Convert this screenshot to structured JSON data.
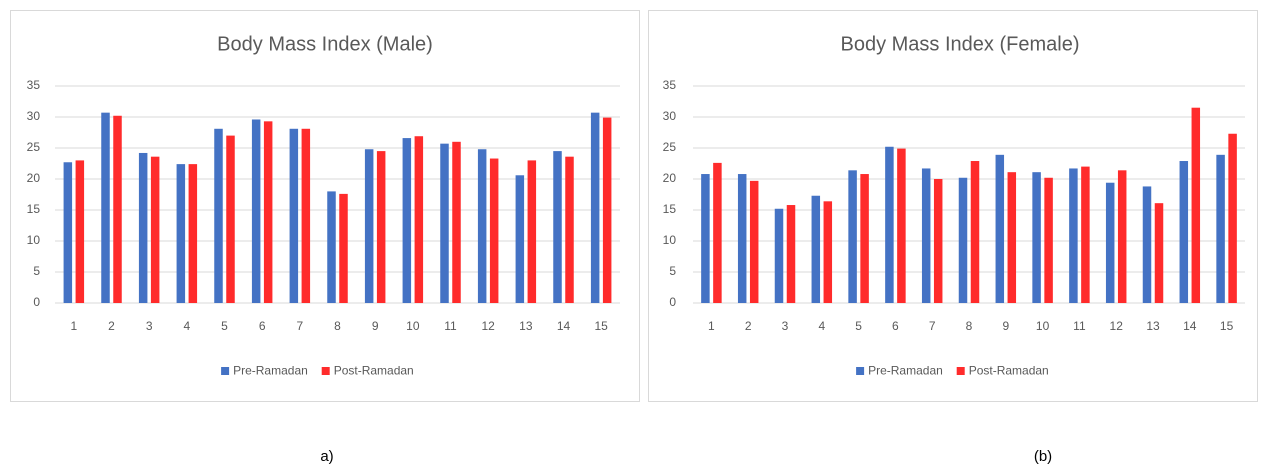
{
  "chart_data": [
    {
      "type": "bar",
      "title": "Body Mass Index (Male)",
      "caption": "a)",
      "categories": [
        "1",
        "2",
        "3",
        "4",
        "5",
        "6",
        "7",
        "8",
        "9",
        "10",
        "11",
        "12",
        "13",
        "14",
        "15"
      ],
      "series": [
        {
          "name": "Pre-Ramadan",
          "color": "#4472c4",
          "values": [
            22.7,
            30.7,
            24.2,
            22.4,
            28.1,
            29.6,
            28.1,
            18,
            24.8,
            26.6,
            25.7,
            24.8,
            20.6,
            24.5,
            30.7
          ]
        },
        {
          "name": "Post-Ramadan",
          "color": "#ff2b2b",
          "values": [
            23,
            30.2,
            23.6,
            22.4,
            27,
            29.3,
            28.1,
            17.6,
            24.5,
            26.9,
            26,
            23.3,
            23,
            23.6,
            29.9
          ]
        }
      ],
      "ylim": [
        0,
        35
      ],
      "yticks": [
        0,
        5,
        10,
        15,
        20,
        25,
        30,
        35
      ],
      "grid": true,
      "legend": "bottom"
    },
    {
      "type": "bar",
      "title": "Body Mass Index (Female)",
      "caption": "(b)",
      "categories": [
        "1",
        "2",
        "3",
        "4",
        "5",
        "6",
        "7",
        "8",
        "9",
        "10",
        "11",
        "12",
        "13",
        "14",
        "15"
      ],
      "series": [
        {
          "name": "Pre-Ramadan",
          "color": "#4472c4",
          "values": [
            20.8,
            20.8,
            15.2,
            17.3,
            21.4,
            25.2,
            21.7,
            20.2,
            23.9,
            21.1,
            21.7,
            19.4,
            18.8,
            22.9,
            23.9
          ]
        },
        {
          "name": "Post-Ramadan",
          "color": "#ff2b2b",
          "values": [
            22.6,
            19.7,
            15.8,
            16.4,
            20.8,
            24.9,
            20,
            22.9,
            21.1,
            20.2,
            22,
            21.4,
            16.1,
            31.5,
            27.3
          ]
        }
      ],
      "ylim": [
        0,
        35
      ],
      "yticks": [
        0,
        5,
        10,
        15,
        20,
        25,
        30,
        35
      ],
      "grid": true,
      "legend": "bottom"
    }
  ]
}
